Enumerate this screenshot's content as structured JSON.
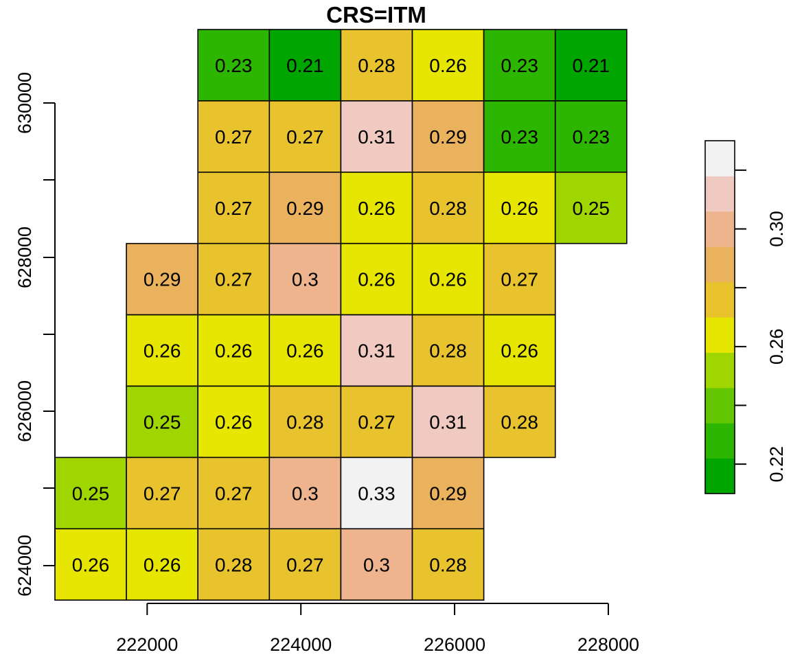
{
  "chart_data": {
    "type": "heatmap",
    "title": "CRS=ITM",
    "xlabel": "",
    "ylabel": "",
    "x_ticks": [
      222000,
      224000,
      226000,
      228000
    ],
    "y_ticks": [
      624000,
      626000,
      628000,
      630000
    ],
    "x_tick_labels": [
      "222000",
      "224000",
      "226000",
      "228000"
    ],
    "y_tick_labels": [
      "624000",
      "626000",
      "628000",
      "630000"
    ],
    "cell_size": 930,
    "x_origin": 220800,
    "y_origin": 623450,
    "columns": 8,
    "rows": 8,
    "values": [
      [
        null,
        null,
        0.23,
        0.21,
        0.28,
        0.26,
        0.23,
        0.21
      ],
      [
        null,
        null,
        0.27,
        0.27,
        0.31,
        0.29,
        0.23,
        0.23
      ],
      [
        null,
        null,
        0.27,
        0.29,
        0.26,
        0.28,
        0.26,
        0.25
      ],
      [
        null,
        0.29,
        0.27,
        0.3,
        0.26,
        0.26,
        0.27,
        null
      ],
      [
        null,
        0.26,
        0.26,
        0.26,
        0.31,
        0.28,
        0.26,
        null
      ],
      [
        null,
        0.25,
        0.26,
        0.28,
        0.27,
        0.31,
        0.28,
        null
      ],
      [
        0.25,
        0.27,
        0.27,
        0.3,
        0.33,
        0.29,
        null,
        null
      ],
      [
        0.26,
        0.26,
        0.28,
        0.27,
        0.3,
        0.28,
        null,
        null
      ]
    ],
    "labels": [
      [
        null,
        null,
        "0.23",
        "0.21",
        "0.28",
        "0.26",
        "0.23",
        "0.21"
      ],
      [
        null,
        null,
        "0.27",
        "0.27",
        "0.31",
        "0.29",
        "0.23",
        "0.23"
      ],
      [
        null,
        null,
        "0.27",
        "0.29",
        "0.26",
        "0.28",
        "0.26",
        "0.25"
      ],
      [
        null,
        "0.29",
        "0.27",
        "0.3",
        "0.26",
        "0.26",
        "0.27",
        null
      ],
      [
        null,
        "0.26",
        "0.26",
        "0.26",
        "0.31",
        "0.28",
        "0.26",
        null
      ],
      [
        null,
        "0.25",
        "0.26",
        "0.28",
        "0.27",
        "0.31",
        "0.28",
        null
      ],
      [
        "0.25",
        "0.27",
        "0.27",
        "0.3",
        "0.33",
        "0.29",
        null,
        null
      ],
      [
        "0.26",
        "0.26",
        "0.28",
        "0.27",
        "0.3",
        "0.28",
        null,
        null
      ]
    ],
    "legend": {
      "placement": "right",
      "range": [
        0.21,
        0.33
      ],
      "tick_values": [
        0.22,
        0.26,
        0.3
      ],
      "tick_labels": [
        "0.22",
        "0.26",
        "0.30"
      ],
      "colors": [
        "#00A600",
        "#2DB600",
        "#63C600",
        "#A0D600",
        "#E6E600",
        "#E8C32E",
        "#EBB25E",
        "#EDB48E",
        "#F0C9C0",
        "#F2F2F2"
      ]
    }
  }
}
